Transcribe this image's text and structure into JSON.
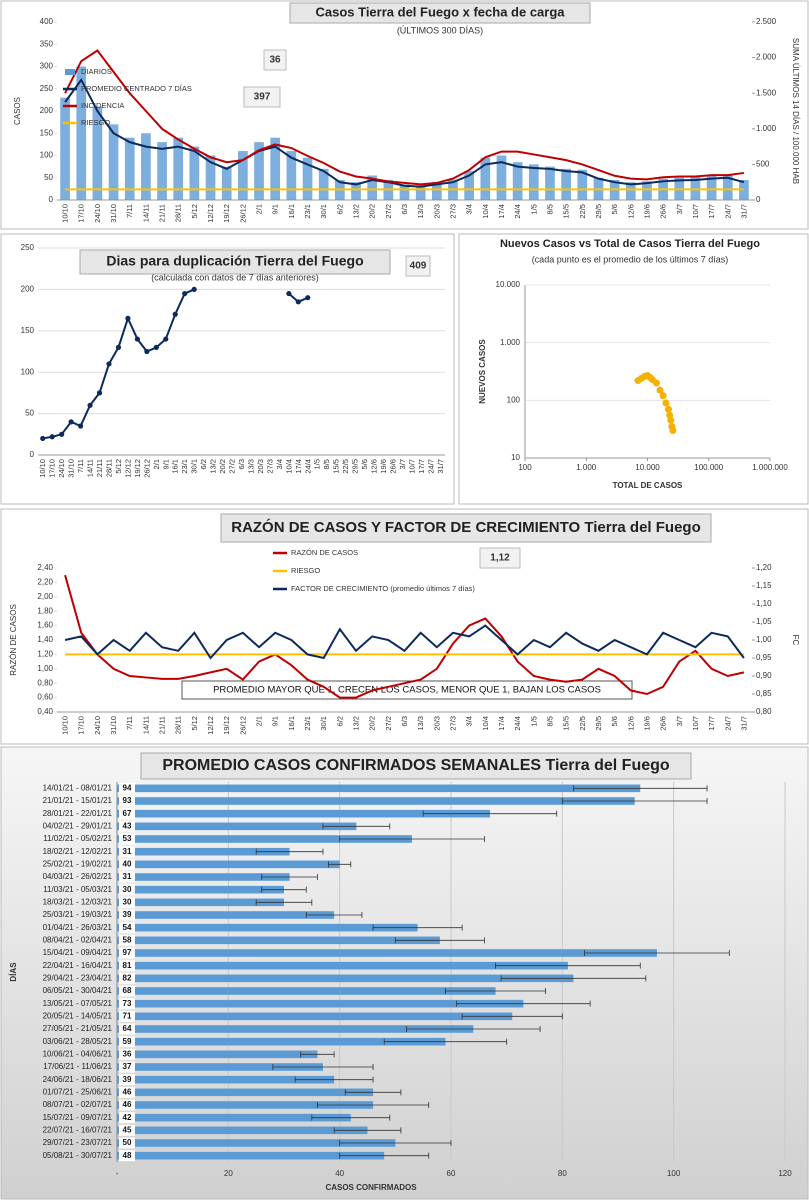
{
  "chart_data": [
    {
      "type": "line",
      "title": "Casos Tierra del Fuego x fecha de carga",
      "subtitle": "(ÚLTIMOS 300 DÍAS)",
      "ylabel": "CASOS",
      "y2label": "SUMA ÚLTIMOS 14 DÍAS / 100.000 HAB",
      "annotations": [
        "36",
        "397"
      ],
      "categories": [
        "10/10",
        "17/10",
        "24/10",
        "31/10",
        "7/11",
        "14/11",
        "21/11",
        "28/11",
        "5/12",
        "12/12",
        "19/12",
        "26/12",
        "2/1",
        "9/1",
        "16/1",
        "23/1",
        "30/1",
        "6/2",
        "13/2",
        "20/2",
        "27/2",
        "6/3",
        "13/3",
        "20/3",
        "27/3",
        "3/4",
        "10/4",
        "17/4",
        "24/4",
        "1/5",
        "8/5",
        "15/5",
        "22/5",
        "29/5",
        "5/6",
        "12/6",
        "19/6",
        "26/6",
        "3/7",
        "10/7",
        "17/7",
        "24/7",
        "31/7"
      ],
      "ylim": [
        0,
        400
      ],
      "yticks": [
        0,
        50,
        100,
        150,
        200,
        250,
        300,
        350,
        400
      ],
      "y2lim": [
        0,
        2500
      ],
      "y2ticks": [
        0,
        500,
        {
          "value": 1000,
          "label": "1.000"
        },
        {
          "value": 1500,
          "label": "1.500"
        },
        {
          "value": 2000,
          "label": "2.000"
        },
        {
          "value": 2500,
          "label": "2.500"
        }
      ],
      "grid": false,
      "series": [
        {
          "name": "DIARIOS",
          "kind": "bar",
          "color": "#5b9bd5",
          "values": [
            230,
            300,
            210,
            170,
            140,
            150,
            130,
            140,
            120,
            100,
            75,
            110,
            130,
            140,
            110,
            95,
            70,
            45,
            40,
            55,
            45,
            35,
            32,
            40,
            45,
            65,
            95,
            100,
            85,
            80,
            75,
            70,
            68,
            50,
            45,
            40,
            42,
            48,
            50,
            52,
            55,
            58,
            45
          ]
        },
        {
          "name": "PROMEDIO CENTRADO 7 DÍAS",
          "kind": "line",
          "color": "#0c2a5c",
          "values": [
            220,
            270,
            200,
            150,
            130,
            120,
            115,
            120,
            110,
            85,
            70,
            90,
            110,
            120,
            95,
            80,
            65,
            40,
            35,
            45,
            40,
            32,
            30,
            35,
            40,
            55,
            80,
            85,
            75,
            72,
            70,
            65,
            62,
            48,
            40,
            35,
            38,
            42,
            44,
            45,
            48,
            50,
            40
          ]
        },
        {
          "name": "INCIDENCIA",
          "kind": "line",
          "axis": "y2",
          "color": "#c00000",
          "values": [
            1500,
            1950,
            2100,
            1800,
            1500,
            1250,
            1000,
            850,
            720,
            600,
            530,
            560,
            700,
            780,
            730,
            620,
            520,
            400,
            330,
            300,
            260,
            240,
            220,
            240,
            300,
            420,
            600,
            680,
            680,
            640,
            600,
            560,
            500,
            420,
            340,
            300,
            290,
            320,
            330,
            330,
            350,
            350,
            380
          ]
        },
        {
          "name": "RIESGO",
          "kind": "line",
          "axis": "y2",
          "color": "#ffc000",
          "values": [
            150,
            150,
            150,
            150,
            150,
            150,
            150,
            150,
            150,
            150,
            150,
            150,
            150,
            150,
            150,
            150,
            150,
            150,
            150,
            150,
            150,
            150,
            150,
            150,
            150,
            150,
            150,
            150,
            150,
            150,
            150,
            150,
            150,
            150,
            150,
            150,
            150,
            150,
            150,
            150,
            150,
            150,
            150
          ]
        }
      ]
    },
    {
      "type": "line",
      "title": "Dias para duplicación Tierra del Fuego",
      "subtitle": "(calculada con datos de 7 días anteriores)",
      "annotations": [
        "409"
      ],
      "categories": [
        "10/10",
        "17/10",
        "24/10",
        "31/10",
        "7/11",
        "14/11",
        "21/11",
        "28/11",
        "5/12",
        "12/12",
        "19/12",
        "26/12",
        "2/1",
        "9/1",
        "16/1",
        "23/1",
        "30/1",
        "6/2",
        "13/2",
        "20/2",
        "27/2",
        "6/3",
        "13/3",
        "20/3",
        "27/3",
        "3/4",
        "10/4",
        "17/4",
        "24/4",
        "1/5",
        "8/5",
        "15/5",
        "22/5",
        "29/5",
        "5/6",
        "12/6",
        "19/6",
        "26/6",
        "3/7",
        "10/7",
        "17/7",
        "24/7",
        "31/7"
      ],
      "ylim": [
        0,
        250
      ],
      "yticks": [
        0,
        50,
        100,
        150,
        200,
        250
      ],
      "grid": true,
      "series": [
        {
          "kind": "line",
          "marker": true,
          "color": "#0c2a5c",
          "values": [
            20,
            22,
            25,
            40,
            35,
            60,
            75,
            110,
            130,
            165,
            140,
            125,
            130,
            140,
            170,
            195,
            200,
            null,
            null,
            null,
            null,
            null,
            null,
            null,
            null,
            null,
            195,
            185,
            190,
            null,
            null,
            null,
            null,
            null,
            null,
            null,
            null,
            null,
            null,
            null,
            null,
            null,
            null
          ]
        }
      ]
    },
    {
      "type": "scatter",
      "title": "Nuevos Casos vs Total de Casos Tierra del Fuego",
      "subtitle": "(cada punto es el promedio de los últimos 7 días)",
      "xlabel": "TOTAL DE CASOS",
      "ylabel": "NUEVOS CASOS",
      "xscale": "log",
      "yscale": "log",
      "color": "#f5b000",
      "xlim": [
        100,
        1000000
      ],
      "xticks": [
        100,
        {
          "value": 1000,
          "label": "1.000"
        },
        {
          "value": 10000,
          "label": "10.000"
        },
        {
          "value": 100000,
          "label": "100.000"
        },
        {
          "value": 1000000,
          "label": "1.000.000"
        }
      ],
      "ylim": [
        10,
        10000
      ],
      "yticks": [
        10,
        100,
        {
          "value": 1000,
          "label": "1.000"
        },
        {
          "value": 10000,
          "label": "10.000"
        }
      ],
      "x": [
        7000,
        8000,
        9000,
        10000,
        11000,
        12000,
        14000,
        16000,
        18000,
        20000,
        22000,
        23000,
        24000,
        25000,
        26000
      ],
      "values": [
        220,
        240,
        260,
        270,
        250,
        230,
        200,
        150,
        120,
        90,
        70,
        55,
        45,
        35,
        30
      ]
    },
    {
      "type": "line",
      "title": "RAZÓN DE CASOS Y FACTOR DE CRECIMIENTO Tierra del Fuego",
      "ylabel": "RAZÓN DE CASOS",
      "y2label": "FC",
      "annotations": [
        "1,12"
      ],
      "note": "PROMEDIO MAYOR QUE 1, CRECEN LOS CASOS, MENOR QUE 1, BAJAN LOS CASOS",
      "categories": [
        "10/10",
        "17/10",
        "24/10",
        "31/10",
        "7/11",
        "14/11",
        "21/11",
        "28/11",
        "5/12",
        "12/12",
        "19/12",
        "26/12",
        "2/1",
        "9/1",
        "16/1",
        "23/1",
        "30/1",
        "6/2",
        "13/2",
        "20/2",
        "27/2",
        "6/3",
        "13/3",
        "20/3",
        "27/3",
        "3/4",
        "10/4",
        "17/4",
        "24/4",
        "1/5",
        "8/5",
        "15/5",
        "22/5",
        "29/5",
        "5/6",
        "12/6",
        "19/6",
        "26/6",
        "3/7",
        "10/7",
        "17/7",
        "24/7",
        "31/7"
      ],
      "ylim": [
        0.4,
        2.4
      ],
      "yticks": [
        {
          "value": 0.4,
          "label": "0,40"
        },
        {
          "value": 0.6,
          "label": "0,60"
        },
        {
          "value": 0.8,
          "label": "0,80"
        },
        {
          "value": 1.0,
          "label": "1,00"
        },
        {
          "value": 1.2,
          "label": "1,20"
        },
        {
          "value": 1.4,
          "label": "1,40"
        },
        {
          "value": 1.6,
          "label": "1,60"
        },
        {
          "value": 1.8,
          "label": "1,80"
        },
        {
          "value": 2.0,
          "label": "2,00"
        },
        {
          "value": 2.2,
          "label": "2,20"
        },
        {
          "value": 2.4,
          "label": "2,40"
        }
      ],
      "y2lim": [
        0.8,
        1.2
      ],
      "y2ticks": [
        {
          "value": 0.8,
          "label": "0,80"
        },
        {
          "value": 0.85,
          "label": "0,85"
        },
        {
          "value": 0.9,
          "label": "0,90"
        },
        {
          "value": 0.95,
          "label": "0,95"
        },
        {
          "value": 1.0,
          "label": "1,00"
        },
        {
          "value": 1.05,
          "label": "1,05"
        },
        {
          "value": 1.1,
          "label": "1,10"
        },
        {
          "value": 1.15,
          "label": "1,15"
        },
        {
          "value": 1.2,
          "label": "1,20"
        }
      ],
      "grid": false,
      "series": [
        {
          "name": "RAZÓN DE CASOS",
          "kind": "line",
          "color": "#c00000",
          "values": [
            2.3,
            1.5,
            1.2,
            1.0,
            0.9,
            0.88,
            0.86,
            0.86,
            0.9,
            0.95,
            1.0,
            0.85,
            1.1,
            1.2,
            1.05,
            0.85,
            0.75,
            0.6,
            0.6,
            0.7,
            0.75,
            0.8,
            0.85,
            1.0,
            1.35,
            1.6,
            1.7,
            1.45,
            1.1,
            0.9,
            0.85,
            0.82,
            0.85,
            1.0,
            0.9,
            0.7,
            0.65,
            0.75,
            1.1,
            1.25,
            1.0,
            0.9,
            0.95
          ]
        },
        {
          "name": "RIESGO",
          "kind": "line",
          "color": "#ffc000",
          "values": [
            1.2,
            1.2,
            1.2,
            1.2,
            1.2,
            1.2,
            1.2,
            1.2,
            1.2,
            1.2,
            1.2,
            1.2,
            1.2,
            1.2,
            1.2,
            1.2,
            1.2,
            1.2,
            1.2,
            1.2,
            1.2,
            1.2,
            1.2,
            1.2,
            1.2,
            1.2,
            1.2,
            1.2,
            1.2,
            1.2,
            1.2,
            1.2,
            1.2,
            1.2,
            1.2,
            1.2,
            1.2,
            1.2,
            1.2,
            1.2,
            1.2,
            1.2,
            1.2
          ]
        },
        {
          "name": "FACTOR DE CRECIMIENTO (promedio últimos 7 días)",
          "kind": "line",
          "axis": "y2",
          "color": "#0c2a5c",
          "values": [
            1.0,
            1.01,
            0.96,
            1.0,
            0.97,
            1.02,
            0.98,
            0.97,
            1.02,
            0.95,
            1.0,
            1.02,
            0.98,
            1.02,
            1.0,
            0.96,
            0.95,
            1.03,
            0.97,
            1.01,
            1.0,
            0.97,
            1.02,
            0.98,
            1.02,
            1.01,
            1.04,
            1.0,
            0.96,
            1.0,
            0.98,
            1.02,
            0.99,
            0.97,
            1.0,
            0.98,
            0.96,
            1.02,
            1.0,
            0.98,
            1.02,
            1.01,
            0.95
          ]
        }
      ]
    },
    {
      "type": "bar",
      "orientation": "horizontal",
      "title": "PROMEDIO CASOS CONFIRMADOS SEMANALES Tierra del Fuego",
      "xlabel": "CASOS CONFIRMADOS",
      "ylabel": "DÍAS",
      "color": "#5b9bd5",
      "grid": true,
      "xlim": [
        0,
        120
      ],
      "xticks": [
        {
          "value": 0,
          "label": "-"
        },
        20,
        40,
        60,
        80,
        100,
        120
      ],
      "categories": [
        "14/01/21 - 08/01/21",
        "21/01/21 - 15/01/21",
        "28/01/21 - 22/01/21",
        "04/02/21 - 29/01/21",
        "11/02/21 - 05/02/21",
        "18/02/21 - 12/02/21",
        "25/02/21 - 19/02/21",
        "04/03/21 - 26/02/21",
        "11/03/21 - 05/03/21",
        "18/03/21 - 12/03/21",
        "25/03/21 - 19/03/21",
        "01/04/21 - 26/03/21",
        "08/04/21 - 02/04/21",
        "15/04/21 - 09/04/21",
        "22/04/21 - 16/04/21",
        "29/04/21 - 23/04/21",
        "06/05/21 - 30/04/21",
        "13/05/21 - 07/05/21",
        "20/05/21 - 14/05/21",
        "27/05/21 - 21/05/21",
        "03/06/21 - 28/05/21",
        "10/06/21 - 04/06/21",
        "17/06/21 - 11/06/21",
        "24/06/21 - 18/06/21",
        "01/07/21 - 25/06/21",
        "08/07/21 - 02/07/21",
        "15/07/21 - 09/07/21",
        "22/07/21 - 16/07/21",
        "29/07/21 - 23/07/21",
        "05/08/21 - 30/07/21"
      ],
      "values": [
        94,
        93,
        67,
        43,
        53,
        31,
        40,
        31,
        30,
        30,
        39,
        54,
        58,
        97,
        81,
        82,
        68,
        73,
        71,
        64,
        59,
        36,
        37,
        39,
        46,
        46,
        42,
        45,
        50,
        48
      ],
      "errors": [
        12,
        13,
        12,
        6,
        13,
        6,
        2,
        5,
        4,
        5,
        5,
        8,
        8,
        13,
        13,
        13,
        9,
        12,
        9,
        12,
        11,
        3,
        9,
        7,
        5,
        10,
        7,
        6,
        10,
        8
      ]
    }
  ]
}
